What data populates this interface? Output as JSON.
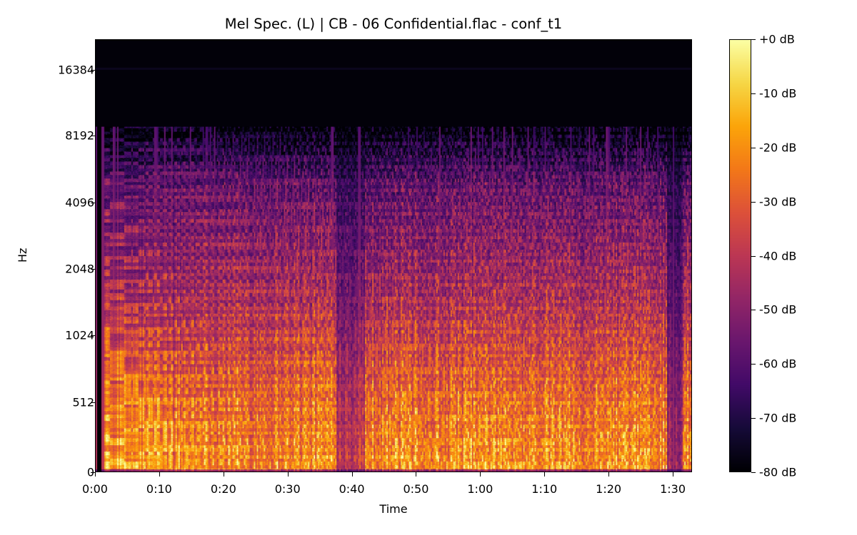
{
  "chart_data": {
    "type": "heatmap",
    "title": "Mel Spec. (L) | CB - 06 Confidential.flac - conf_t1",
    "xlabel": "Time",
    "ylabel": "Hz",
    "x_ticks": [
      "0:00",
      "0:10",
      "0:20",
      "0:30",
      "0:40",
      "0:50",
      "1:00",
      "1:10",
      "1:20",
      "1:30"
    ],
    "x_tick_seconds": [
      0,
      10,
      20,
      30,
      40,
      50,
      60,
      70,
      80,
      90
    ],
    "xlim_seconds": [
      0,
      93
    ],
    "y_ticks": [
      "0",
      "512",
      "1024",
      "2048",
      "4096",
      "8192",
      "16384"
    ],
    "y_scale": "mel",
    "ylim_hz": [
      0,
      22050
    ],
    "colormap": "inferno",
    "colorbar": {
      "ticks": [
        "+0 dB",
        "-10 dB",
        "-20 dB",
        "-30 dB",
        "-40 dB",
        "-50 dB",
        "-60 dB",
        "-70 dB",
        "-80 dB"
      ],
      "range_db": [
        -80,
        0
      ]
    },
    "description": "Energy concentrated below ~1 kHz (bright yellow/orange around 100-500 Hz), purple harmonics up to ~4-6 kHz, transient spikes reaching ~8-9 kHz, near silence above ~9 kHz. Quieter dip around 0:38-0:42 and near end (~1:30-1:33)."
  }
}
